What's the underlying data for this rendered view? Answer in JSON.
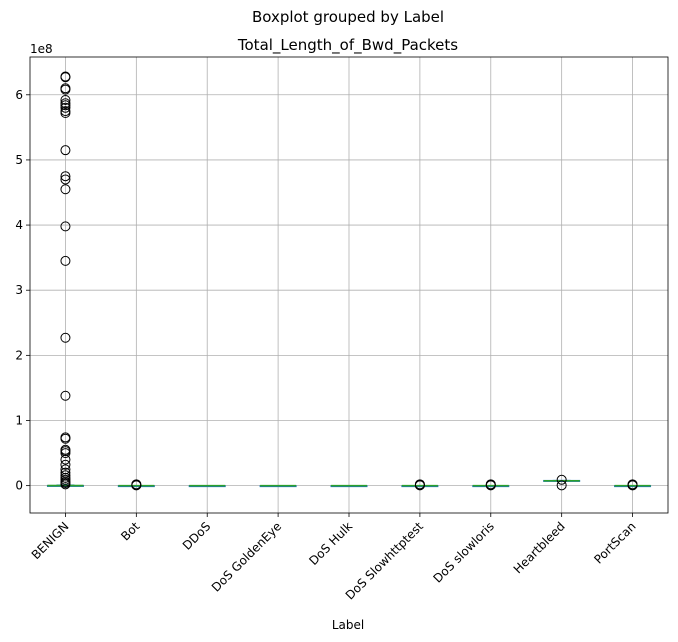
{
  "chart_data": {
    "type": "boxplot",
    "suptitle": "Boxplot grouped by Label",
    "title": "Total_Length_of_Bwd_Packets",
    "xlabel": "Label",
    "ylabel": "",
    "y_offset_label": "1e8",
    "y_scale_factor": 100000000,
    "ylim": [
      -0.42,
      6.58
    ],
    "yticks": [
      0,
      1,
      2,
      3,
      4,
      5,
      6
    ],
    "grid": true,
    "colors": {
      "box": "#1f77b4",
      "median": "#2ca02c",
      "whisker": "#1f77b4",
      "flier": "#000000",
      "grid": "#b0b0b0"
    },
    "categories": [
      "BENIGN",
      "Bot",
      "DDoS",
      "DoS GoldenEye",
      "DoS Hulk",
      "DoS Slowhttptest",
      "DoS slowloris",
      "Heartbleed",
      "PortScan"
    ],
    "groups": [
      {
        "label": "BENIGN",
        "q1": 0,
        "median": 0.001,
        "q3": 0.003,
        "whisker_low": 0,
        "whisker_high": 0.01,
        "fliers": [
          6.28,
          6.27,
          6.1,
          6.08,
          5.92,
          5.87,
          5.84,
          5.8,
          5.75,
          5.72,
          5.15,
          4.75,
          4.7,
          4.55,
          3.98,
          3.45,
          2.27,
          1.38,
          0.74,
          0.72,
          0.55,
          0.53,
          0.5,
          0.4,
          0.32,
          0.25,
          0.2,
          0.16,
          0.12,
          0.09,
          0.06,
          0.04,
          0.02
        ]
      },
      {
        "label": "Bot",
        "q1": 0,
        "median": 0.0001,
        "q3": 0.0005,
        "whisker_low": 0,
        "whisker_high": 0.001,
        "fliers": [
          0.02,
          0.01,
          0.005
        ]
      },
      {
        "label": "DDoS",
        "q1": 0,
        "median": 0.0001,
        "q3": 0.0003,
        "whisker_low": 0,
        "whisker_high": 0.0005,
        "fliers": []
      },
      {
        "label": "DoS GoldenEye",
        "q1": 0,
        "median": 0.0001,
        "q3": 0.0003,
        "whisker_low": 0,
        "whisker_high": 0.0005,
        "fliers": []
      },
      {
        "label": "DoS Hulk",
        "q1": 0,
        "median": 0.0001,
        "q3": 0.0003,
        "whisker_low": 0,
        "whisker_high": 0.0005,
        "fliers": []
      },
      {
        "label": "DoS Slowhttptest",
        "q1": 0,
        "median": 0.0001,
        "q3": 0.0003,
        "whisker_low": 0,
        "whisker_high": 0.0005,
        "fliers": [
          0.02,
          0.01,
          0.005
        ]
      },
      {
        "label": "DoS slowloris",
        "q1": 0,
        "median": 0.0001,
        "q3": 0.0003,
        "whisker_low": 0,
        "whisker_high": 0.0005,
        "fliers": [
          0.02,
          0.01,
          0.005
        ]
      },
      {
        "label": "Heartbleed",
        "q1": 0.07,
        "median": 0.075,
        "q3": 0.08,
        "whisker_low": 0.07,
        "whisker_high": 0.08,
        "fliers": [
          0.09,
          0.005
        ]
      },
      {
        "label": "PortScan",
        "q1": 0,
        "median": 0.0001,
        "q3": 0.0003,
        "whisker_low": 0,
        "whisker_high": 0.0005,
        "fliers": [
          0.02,
          0.01,
          0.005
        ]
      }
    ]
  }
}
